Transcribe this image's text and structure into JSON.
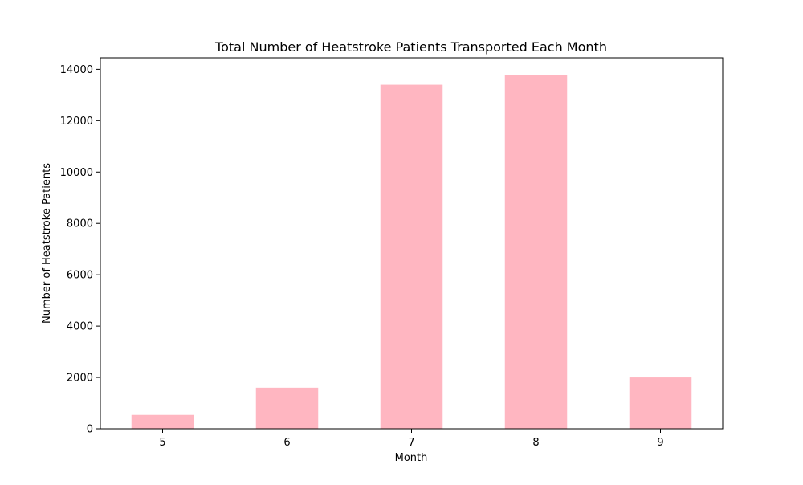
{
  "chart_data": {
    "type": "bar",
    "title": "Total Number of Heatstroke Patients Transported Each Month",
    "xlabel": "Month",
    "ylabel": "Number of Heatstroke Patients",
    "categories": [
      "5",
      "6",
      "7",
      "8",
      "9"
    ],
    "values": [
      540,
      1600,
      13400,
      13780,
      2000
    ],
    "ylim": [
      0,
      14450
    ],
    "yticks": [
      0,
      2000,
      4000,
      6000,
      8000,
      10000,
      12000,
      14000
    ],
    "grid": false,
    "legend": "none",
    "colors": {
      "bar": "#ffb6c1",
      "axis": "#000000",
      "background": "#ffffff"
    }
  }
}
